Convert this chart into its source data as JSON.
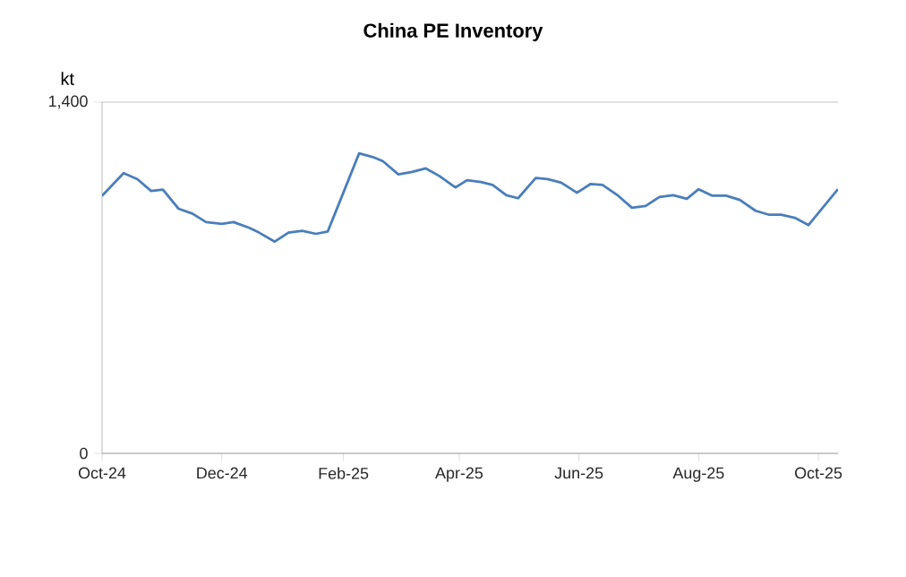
{
  "chart_data": {
    "type": "line",
    "title": "China PE Inventory",
    "ylabel": "kt",
    "x": [
      "2024-10-01",
      "2024-10-12",
      "2024-10-19",
      "2024-10-26",
      "2024-11-01",
      "2024-11-09",
      "2024-11-16",
      "2024-11-23",
      "2024-12-01",
      "2024-12-07",
      "2024-12-15",
      "2024-12-20",
      "2024-12-28",
      "2025-01-04",
      "2025-01-11",
      "2025-01-18",
      "2025-01-24",
      "2025-02-09",
      "2025-02-16",
      "2025-02-21",
      "2025-03-01",
      "2025-03-08",
      "2025-03-15",
      "2025-03-22",
      "2025-03-30",
      "2025-04-05",
      "2025-04-12",
      "2025-04-18",
      "2025-04-25",
      "2025-05-01",
      "2025-05-10",
      "2025-05-16",
      "2025-05-23",
      "2025-05-31",
      "2025-06-07",
      "2025-06-13",
      "2025-06-21",
      "2025-06-28",
      "2025-07-05",
      "2025-07-12",
      "2025-07-19",
      "2025-07-26",
      "2025-08-01",
      "2025-08-08",
      "2025-08-15",
      "2025-08-22",
      "2025-08-30",
      "2025-09-06",
      "2025-09-12",
      "2025-09-19",
      "2025-09-26",
      "2025-10-11"
    ],
    "series": [
      {
        "color": "#4a7ebb",
        "values": [
          1027,
          1117,
          1093,
          1046,
          1051,
          975,
          956,
          922,
          915,
          922,
          899,
          880,
          844,
          880,
          887,
          875,
          884,
          1196,
          1181,
          1165,
          1112,
          1122,
          1136,
          1105,
          1060,
          1089,
          1082,
          1070,
          1029,
          1017,
          1098,
          1093,
          1079,
          1039,
          1074,
          1070,
          1027,
          979,
          986,
          1022,
          1029,
          1015,
          1053,
          1027,
          1027,
          1010,
          967,
          951,
          951,
          939,
          910,
          1053
        ]
      }
    ],
    "xlim": [
      "2024-10-01",
      "2025-10-11"
    ],
    "xticks": [
      {
        "value": "2024-10-01",
        "label": "Oct-24"
      },
      {
        "value": "2024-12-01",
        "label": "Dec-24"
      },
      {
        "value": "2025-02-01",
        "label": "Feb-25"
      },
      {
        "value": "2025-04-01",
        "label": "Apr-25"
      },
      {
        "value": "2025-06-01",
        "label": "Jun-25"
      },
      {
        "value": "2025-08-01",
        "label": "Aug-25"
      },
      {
        "value": "2025-10-01",
        "label": "Oct-25"
      }
    ],
    "ylim": [
      0,
      1400
    ],
    "yticks": [
      0,
      {
        "value": 1400,
        "label": "1,400"
      }
    ],
    "grid": "y",
    "legend": false,
    "marker": "none",
    "line_style": "solid"
  }
}
